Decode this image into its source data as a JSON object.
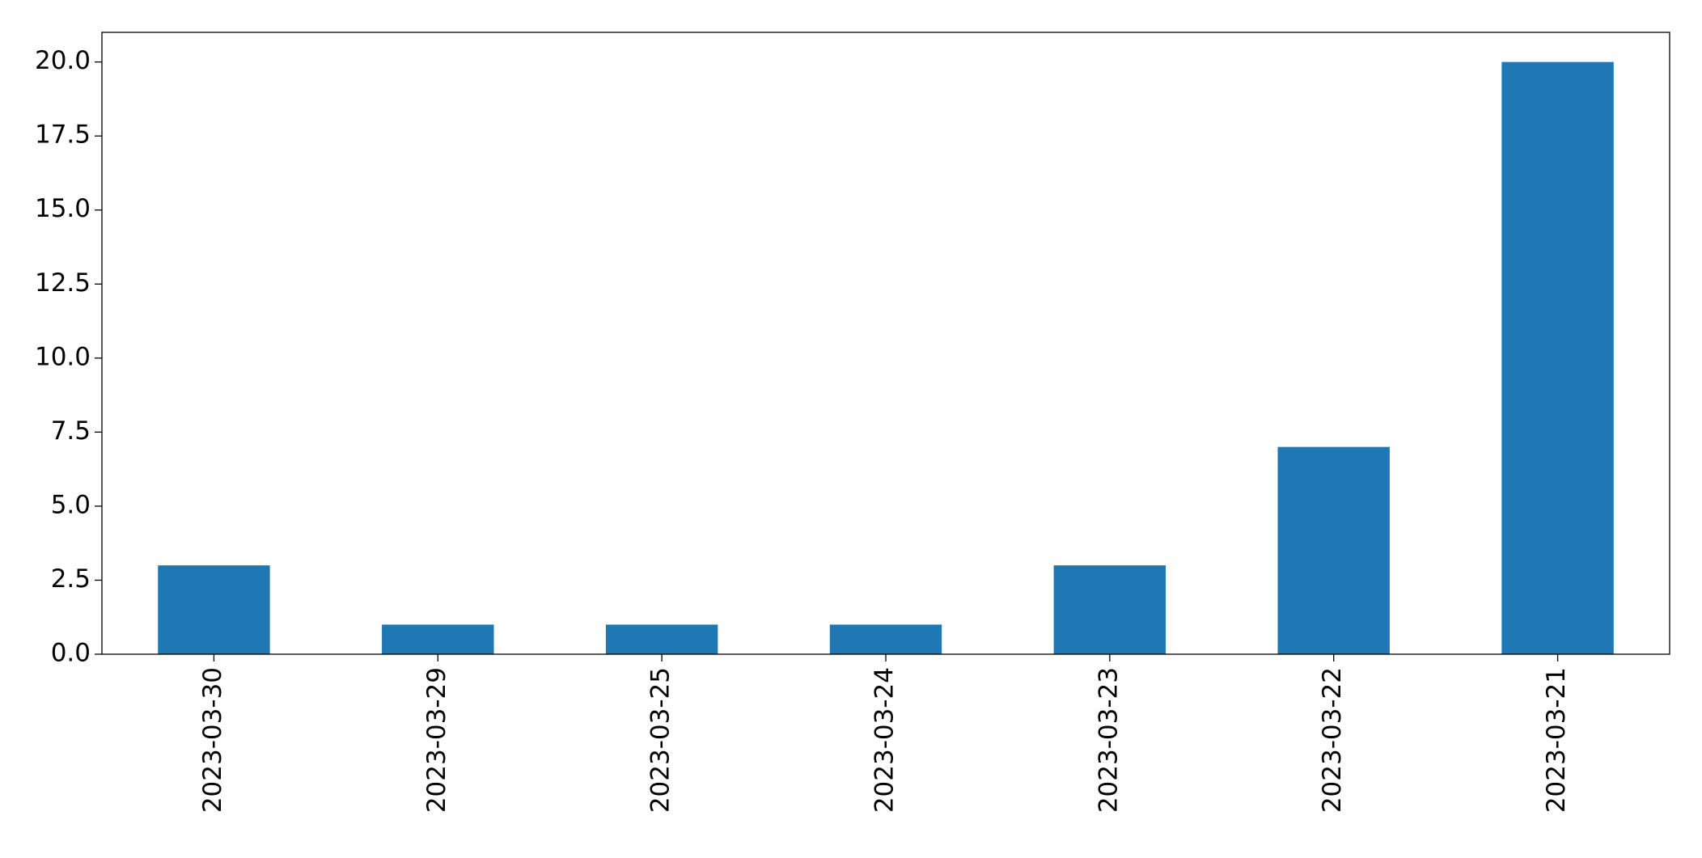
{
  "chart_data": {
    "type": "bar",
    "categories": [
      "2023-03-30",
      "2023-03-29",
      "2023-03-25",
      "2023-03-24",
      "2023-03-23",
      "2023-03-22",
      "2023-03-21"
    ],
    "values": [
      3,
      1,
      1,
      1,
      3,
      7,
      20
    ],
    "color": "#1f77b4",
    "ylim": [
      0,
      21
    ],
    "yticks": [
      {
        "value": 0,
        "label": "0.0"
      },
      {
        "value": 2.5,
        "label": "2.5"
      },
      {
        "value": 5,
        "label": "5.0"
      },
      {
        "value": 7.5,
        "label": "7.5"
      },
      {
        "value": 10,
        "label": "10.0"
      },
      {
        "value": 12.5,
        "label": "12.5"
      },
      {
        "value": 15,
        "label": "15.0"
      },
      {
        "value": 17.5,
        "label": "17.5"
      },
      {
        "value": 20,
        "label": "20.0"
      }
    ],
    "grid": false
  }
}
